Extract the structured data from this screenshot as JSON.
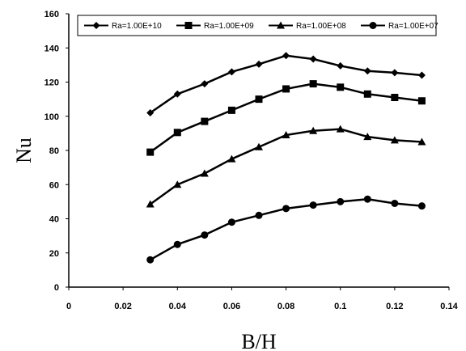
{
  "chart_data": {
    "type": "line",
    "xlabel": "B/H",
    "ylabel": "Nu",
    "xlim": [
      0,
      0.14
    ],
    "ylim": [
      0,
      160
    ],
    "x_ticks": [
      "0",
      "0.02",
      "0.04",
      "0.06",
      "0.08",
      "0.1",
      "0.12",
      "0.14"
    ],
    "y_ticks": [
      "0",
      "20",
      "40",
      "60",
      "80",
      "100",
      "120",
      "140",
      "160"
    ],
    "grid": false,
    "legend_position": "top",
    "x": [
      0.03,
      0.04,
      0.05,
      0.06,
      0.07,
      0.08,
      0.09,
      0.1,
      0.11,
      0.12,
      0.13
    ],
    "series": [
      {
        "name": "Ra=1.00E+10",
        "marker": "diamond",
        "values": [
          102,
          113,
          119,
          126,
          130.5,
          135.5,
          133.5,
          129.5,
          126.5,
          125.5,
          124
        ]
      },
      {
        "name": "Ra=1.00E+09",
        "marker": "square",
        "values": [
          79,
          90.5,
          97,
          103.5,
          110,
          116,
          119,
          117,
          113,
          111,
          109
        ]
      },
      {
        "name": "Ra=1.00E+08",
        "marker": "triangle",
        "values": [
          48.5,
          60,
          66.5,
          75,
          82,
          89,
          91.5,
          92.5,
          88,
          86,
          85
        ]
      },
      {
        "name": "Ra=1.00E+07",
        "marker": "circle",
        "values": [
          16,
          25,
          30.5,
          38,
          42,
          46,
          48,
          50,
          51.5,
          49,
          47.5
        ]
      }
    ],
    "line_color": "#000000"
  }
}
